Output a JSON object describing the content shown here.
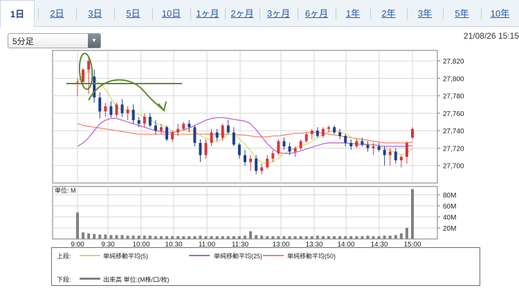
{
  "tabs": [
    "1日",
    "2日",
    "3日",
    "5日",
    "10日",
    "1ヶ月",
    "2ヶ月",
    "3ヶ月",
    "6ヶ月",
    "1年",
    "2年",
    "3年",
    "5年",
    "10年"
  ],
  "active_tab": 0,
  "interval_select": "5分足",
  "timestamp": "21/08/26 15:15",
  "colors": {
    "up": "#d9363e",
    "down": "#1f3f8f",
    "sma5": "#c9dc6e",
    "sma25": "#b35ad1",
    "sma50": "#f08060",
    "volume": "#808080",
    "annotation": "#5a8a2a"
  },
  "chart_data": {
    "type": "candlestick",
    "price_axis": {
      "ticks": [
        "27,820",
        "27,800",
        "27,780",
        "27,760",
        "27,740",
        "27,720",
        "27,700"
      ],
      "ylim": [
        27680,
        27832
      ]
    },
    "volume_axis": {
      "label": "単位: M",
      "ticks": [
        "80M",
        "60M",
        "40M",
        "20M"
      ],
      "ylim": [
        0,
        95
      ]
    },
    "x_ticks": [
      "9:00",
      "9:30",
      "10:00",
      "10:30",
      "11:00",
      "11:30",
      "13:00",
      "13:30",
      "14:00",
      "14:30",
      "15:00"
    ],
    "candles": [
      [
        27796,
        27800,
        27780,
        27796
      ],
      [
        27796,
        27812,
        27793,
        27810
      ],
      [
        27810,
        27824,
        27782,
        27820
      ],
      [
        27802,
        27810,
        27772,
        27778
      ],
      [
        27778,
        27784,
        27754,
        27762
      ],
      [
        27762,
        27772,
        27756,
        27768
      ],
      [
        27768,
        27774,
        27755,
        27758
      ],
      [
        27758,
        27772,
        27755,
        27770
      ],
      [
        27770,
        27776,
        27756,
        27760
      ],
      [
        27760,
        27768,
        27752,
        27764
      ],
      [
        27764,
        27770,
        27748,
        27752
      ],
      [
        27752,
        27756,
        27744,
        27748
      ],
      [
        27748,
        27760,
        27744,
        27756
      ],
      [
        27756,
        27760,
        27744,
        27746
      ],
      [
        27746,
        27752,
        27736,
        27740
      ],
      [
        27740,
        27748,
        27736,
        27744
      ],
      [
        27744,
        27746,
        27728,
        27730
      ],
      [
        27730,
        27740,
        27727,
        27738
      ],
      [
        27738,
        27748,
        27734,
        27742
      ],
      [
        27742,
        27750,
        27740,
        27748
      ],
      [
        27748,
        27752,
        27738,
        27744
      ],
      [
        27744,
        27746,
        27722,
        27726
      ],
      [
        27726,
        27730,
        27704,
        27712
      ],
      [
        27712,
        27730,
        27708,
        27726
      ],
      [
        27726,
        27742,
        27722,
        27738
      ],
      [
        27738,
        27742,
        27728,
        27732
      ],
      [
        27732,
        27748,
        27728,
        27746
      ],
      [
        27746,
        27752,
        27736,
        27738
      ],
      [
        27738,
        27744,
        27722,
        27724
      ],
      [
        27724,
        27726,
        27708,
        27712
      ],
      [
        27712,
        27718,
        27700,
        27704
      ],
      [
        27704,
        27712,
        27694,
        27708
      ],
      [
        27708,
        27712,
        27690,
        27694
      ],
      [
        27694,
        27702,
        27690,
        27698
      ],
      [
        27698,
        27712,
        27696,
        27708
      ],
      [
        27708,
        27718,
        27704,
        27714
      ],
      [
        27714,
        27730,
        27712,
        27728
      ],
      [
        27728,
        27732,
        27718,
        27722
      ],
      [
        27722,
        27726,
        27712,
        27716
      ],
      [
        27716,
        27722,
        27710,
        27720
      ],
      [
        27720,
        27730,
        27718,
        27728
      ],
      [
        27728,
        27738,
        27726,
        27736
      ],
      [
        27736,
        27742,
        27730,
        27740
      ],
      [
        27740,
        27744,
        27732,
        27734
      ],
      [
        27734,
        27744,
        27732,
        27742
      ],
      [
        27742,
        27746,
        27738,
        27744
      ],
      [
        27744,
        27746,
        27736,
        27738
      ],
      [
        27738,
        27742,
        27730,
        27734
      ],
      [
        27734,
        27736,
        27722,
        27726
      ],
      [
        27726,
        27730,
        27718,
        27722
      ],
      [
        27722,
        27730,
        27720,
        27728
      ],
      [
        27728,
        27732,
        27722,
        27724
      ],
      [
        27724,
        27728,
        27716,
        27720
      ],
      [
        27720,
        27726,
        27712,
        27722
      ],
      [
        27722,
        27726,
        27716,
        27718
      ],
      [
        27718,
        27722,
        27700,
        27712
      ],
      [
        27712,
        27720,
        27700,
        27716
      ],
      [
        27716,
        27720,
        27702,
        27706
      ],
      [
        27706,
        27712,
        27698,
        27710
      ],
      [
        27710,
        27728,
        27702,
        27726
      ],
      [
        27732,
        27744,
        27730,
        27742
      ]
    ],
    "candle_times": [
      "9:00",
      "9:05",
      "9:10",
      "9:15",
      "9:20",
      "9:25",
      "9:30",
      "9:35",
      "9:40",
      "9:45",
      "9:50",
      "9:55",
      "10:00",
      "10:05",
      "10:10",
      "10:15",
      "10:20",
      "10:25",
      "10:30",
      "10:35",
      "10:40",
      "10:45",
      "10:50",
      "10:55",
      "11:00",
      "11:05",
      "11:10",
      "11:15",
      "11:20",
      "11:25",
      "11:30",
      "12:30",
      "12:35",
      "12:40",
      "12:45",
      "12:50",
      "12:55",
      "13:00",
      "13:05",
      "13:10",
      "13:15",
      "13:20",
      "13:25",
      "13:30",
      "13:35",
      "13:40",
      "13:45",
      "13:50",
      "13:55",
      "14:00",
      "14:05",
      "14:10",
      "14:15",
      "14:20",
      "14:25",
      "14:30",
      "14:35",
      "14:40",
      "14:45",
      "14:50",
      "15:00"
    ],
    "volume": [
      48,
      12,
      10,
      9,
      8,
      8,
      7,
      7,
      7,
      6,
      6,
      6,
      6,
      6,
      5,
      5,
      5,
      5,
      5,
      5,
      5,
      5,
      6,
      5,
      5,
      5,
      5,
      5,
      5,
      5,
      6,
      14,
      7,
      6,
      5,
      5,
      5,
      5,
      5,
      5,
      5,
      5,
      5,
      6,
      5,
      5,
      5,
      5,
      5,
      5,
      5,
      5,
      6,
      5,
      5,
      6,
      6,
      7,
      10,
      20,
      90
    ],
    "sma25": [
      27722,
      27726,
      27732,
      27740,
      27748,
      27752,
      27754,
      27754,
      27752,
      27750,
      27748,
      27746,
      27744,
      27742,
      27740,
      27739,
      27738,
      27738,
      27739,
      27741,
      27743,
      27746,
      27749,
      27752,
      27754,
      27755,
      27755,
      27754,
      27753,
      27752,
      27751,
      27748,
      27741,
      27733,
      27725,
      27719,
      27715,
      27714,
      27714,
      27715,
      27717,
      27719,
      27721,
      27723,
      27725,
      27726,
      27726,
      27726,
      27726,
      27725,
      27725,
      27724,
      27724,
      27724,
      27723,
      27722,
      27722,
      27722,
      27722,
      27722,
      27723
    ],
    "sma50": [
      27748,
      27746,
      27745,
      27744,
      27743,
      27742,
      27741,
      27740,
      27739,
      27738,
      27737,
      27736,
      27736,
      27736,
      27736,
      27736,
      27736,
      27736,
      27736,
      27736,
      27736,
      27736,
      27736,
      27736,
      27736,
      27736,
      27736,
      27736,
      27736,
      27735,
      27735,
      27734,
      27733,
      27733,
      27733,
      27734,
      27734,
      27735,
      27736,
      27737,
      27737,
      27738,
      27738,
      27738,
      27737,
      27736,
      27735,
      27734,
      27733,
      27732,
      27731,
      27730,
      27729,
      27728,
      27727,
      27726,
      27726,
      27726,
      27726,
      27726,
      27727
    ],
    "annotations": [
      "oval around 9:05 high",
      "horizontal line near 27,795",
      "curved arrow pointing down-right"
    ]
  },
  "legend": {
    "upper_label": "上段:",
    "sma5_label": "単純移動平均(5)",
    "sma25_label": "単純移動平均(25)",
    "sma50_label": "単純移動平均(50)",
    "lower_label": "下段:",
    "volume_label": "出来高 単位:(M株/口/枚)"
  }
}
